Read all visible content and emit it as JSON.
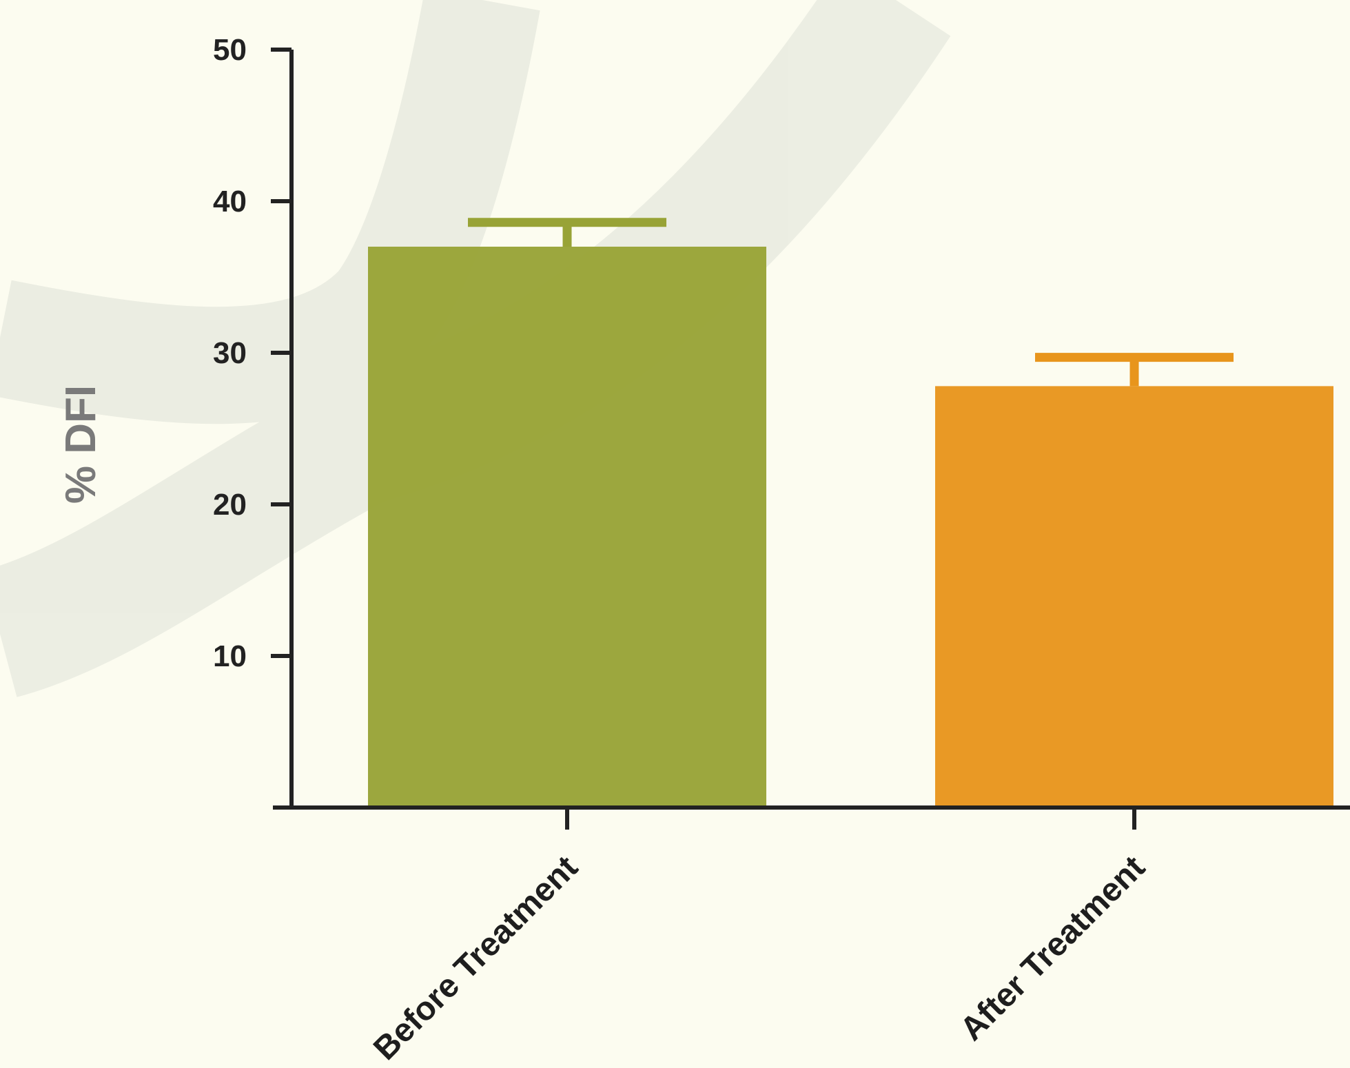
{
  "chart_data": {
    "type": "bar",
    "title": "",
    "xlabel": "",
    "ylabel": "% DFI",
    "ylim": [
      0,
      50
    ],
    "yticks": [
      10,
      20,
      30,
      40,
      50
    ],
    "categories": [
      "Before Treatment",
      "After Treatment"
    ],
    "values": [
      37,
      27.8
    ],
    "error_upper": [
      1.6,
      1.9
    ],
    "colors": [
      "#98a336",
      "#e8951c"
    ],
    "grid": false,
    "legend": "none"
  },
  "colors": {
    "background": "#fcfcf0",
    "watermark": "#ebebe2",
    "axis": "#222222"
  }
}
